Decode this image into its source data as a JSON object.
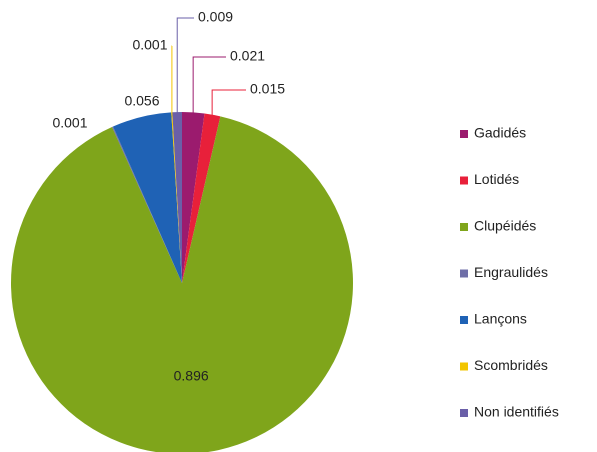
{
  "chart_data": {
    "type": "pie",
    "categories": [
      "Gadidés",
      "Lotidés",
      "Clupéidés",
      "Engraulidés",
      "Lançons",
      "Scombridés",
      "Non identifiés"
    ],
    "values": [
      0.021,
      0.015,
      0.896,
      0.001,
      0.056,
      0.001,
      0.009
    ],
    "colors": [
      "#9b1b6e",
      "#e8203a",
      "#7fa51b",
      "#6f6fa8",
      "#1f62b5",
      "#f2c500",
      "#6a5fa8"
    ],
    "legend": "right"
  }
}
